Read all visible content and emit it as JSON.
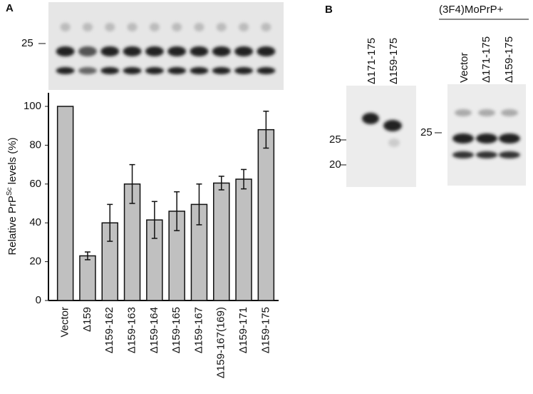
{
  "chart_data": {
    "type": "bar",
    "ylabel": "Relative PrP",
    "ylabel_sup": "Sc",
    "ylabel_suffix": " levels (%)",
    "categories": [
      "Vector",
      "Δ159",
      "Δ159-162",
      "Δ159-163",
      "Δ159-164",
      "Δ159-165",
      "Δ159-167",
      "Δ159-167(169)",
      "Δ159-171",
      "Δ159-175"
    ],
    "values": [
      100,
      23,
      40,
      60,
      41.5,
      46,
      49.5,
      60.5,
      62.5,
      88
    ],
    "errors": [
      null,
      2,
      9.5,
      10,
      9.5,
      10,
      10.5,
      3.5,
      5,
      9.5
    ],
    "color": "#c0c0c0",
    "ylim": [
      0,
      107
    ],
    "yticks": [
      0,
      20,
      40,
      60,
      80,
      100
    ]
  },
  "panels": {
    "a_label": "A",
    "a_marker": "25",
    "b_label": "B",
    "b_group": "(3F4)MoPrP+",
    "b_left_lanes": [
      "Δ171-175",
      "Δ159-175"
    ],
    "b_left_markers": [
      "25",
      "20"
    ],
    "b_right_lanes": [
      "Vector",
      "Δ171-175",
      "Δ159-175"
    ],
    "b_right_marker": "25"
  }
}
